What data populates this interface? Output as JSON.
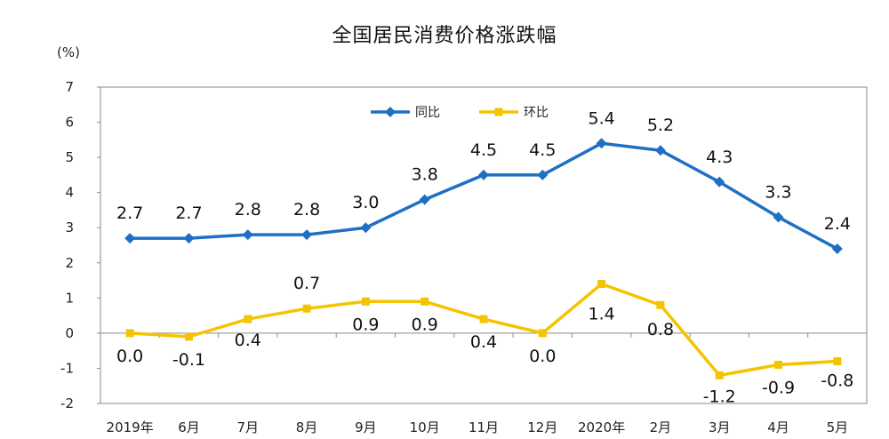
{
  "chart_data": {
    "type": "line",
    "title": "全国居民消费价格涨跌幅",
    "y_unit": "(%)",
    "xlabel": "",
    "ylabel": "",
    "ylim": [
      -2,
      7
    ],
    "y_ticks": [
      "-2",
      "-1",
      "0",
      "1",
      "2",
      "3",
      "4",
      "5",
      "6",
      "7"
    ],
    "categories": [
      "2019年",
      "6月",
      "7月",
      "8月",
      "9月",
      "10月",
      "11月",
      "12月",
      "2020年",
      "2月",
      "3月",
      "4月",
      "5月"
    ],
    "legend_position": "top-center",
    "grid": false,
    "series": [
      {
        "name": "同比",
        "color": "#1f6fc5",
        "marker": "diamond",
        "values": [
          2.7,
          2.7,
          2.8,
          2.8,
          3.0,
          3.8,
          4.5,
          4.5,
          5.4,
          5.2,
          4.3,
          3.3,
          2.4
        ],
        "labels": [
          "2.7",
          "2.7",
          "2.8",
          "2.8",
          "3.0",
          "3.8",
          "4.5",
          "4.5",
          "5.4",
          "5.2",
          "4.3",
          "3.3",
          "2.4"
        ]
      },
      {
        "name": "环比",
        "color": "#f5c400",
        "marker": "square",
        "values": [
          0.0,
          -0.1,
          0.4,
          0.7,
          0.9,
          0.9,
          0.4,
          0.0,
          1.4,
          0.8,
          -1.2,
          -0.9,
          -0.8
        ],
        "labels": [
          "0.0",
          "-0.1",
          "0.4",
          "0.7",
          "0.9",
          "0.9",
          "0.4",
          "0.0",
          "1.4",
          "0.8",
          "-1.2",
          "-0.9",
          "-0.8"
        ]
      }
    ]
  }
}
